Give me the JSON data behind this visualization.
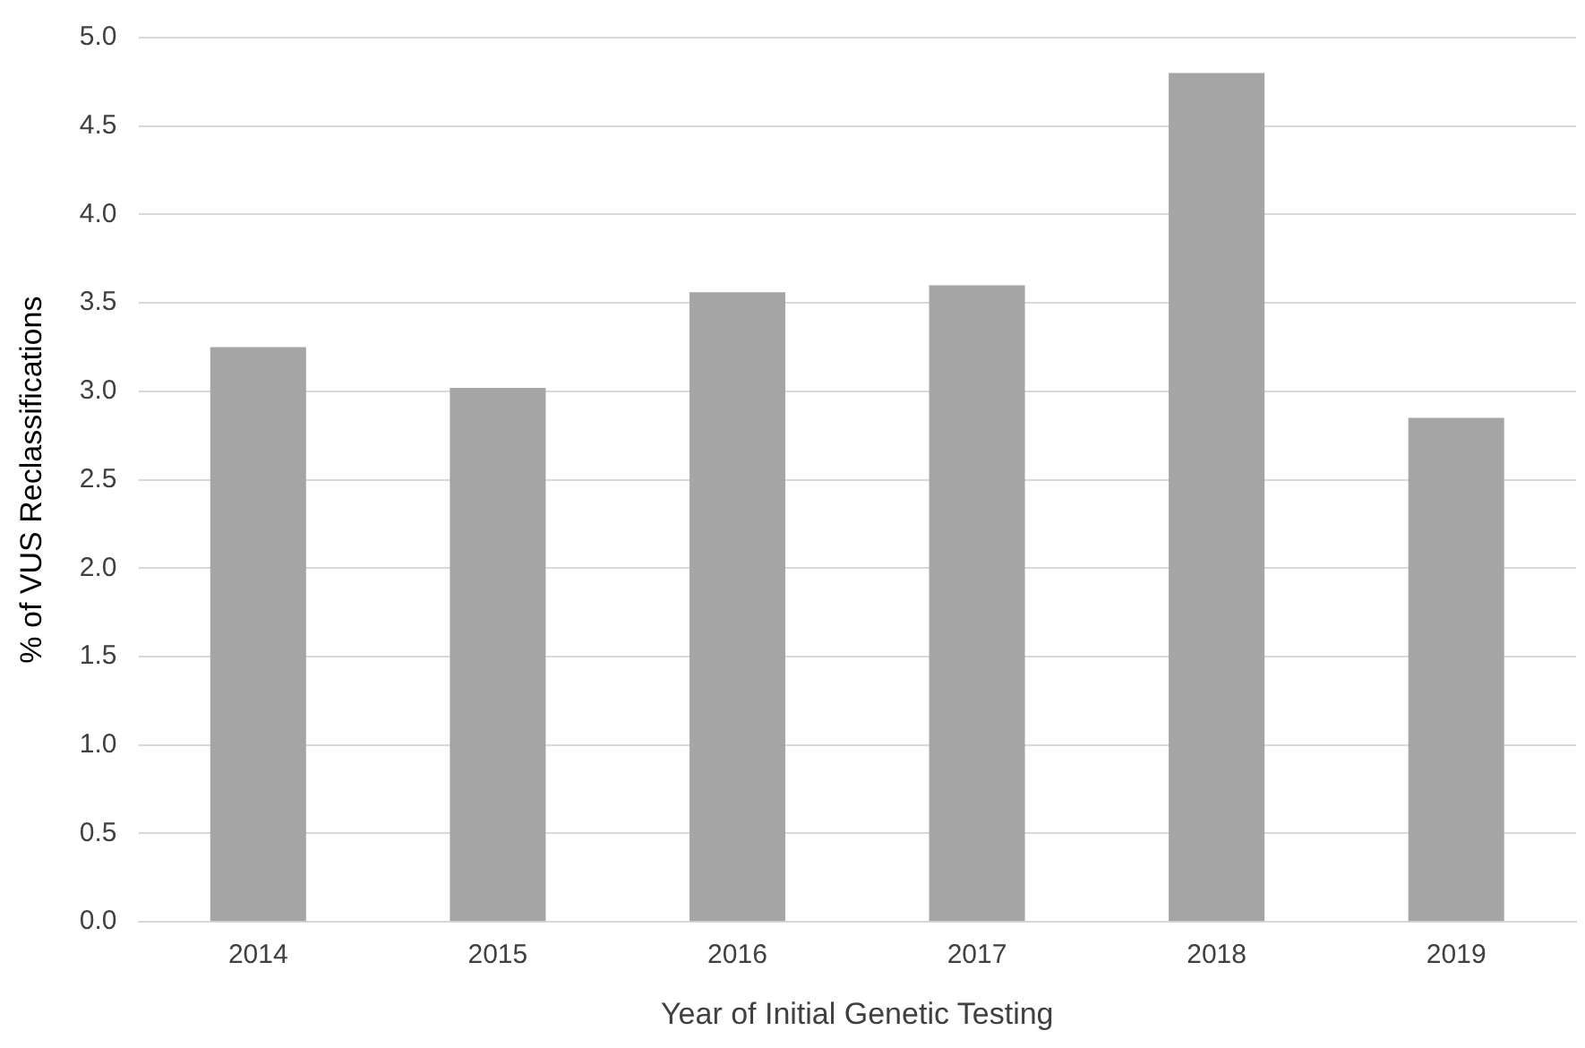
{
  "chart_data": {
    "type": "bar",
    "xlabel": "Year of Initial Genetic Testing",
    "ylabel": "% of VUS Reclassifications",
    "categories": [
      "2014",
      "2015",
      "2016",
      "2017",
      "2018",
      "2019"
    ],
    "values": [
      3.25,
      3.02,
      3.56,
      3.6,
      4.8,
      2.85
    ],
    "color": "#a5a5a5",
    "ylim": [
      0,
      5
    ],
    "yticks": [
      {
        "value": 0,
        "label": "0.0"
      },
      {
        "value": 0.5,
        "label": "0.5"
      },
      {
        "value": 1,
        "label": "1.0"
      },
      {
        "value": 1.5,
        "label": "1.5"
      },
      {
        "value": 2,
        "label": "2.0"
      },
      {
        "value": 2.5,
        "label": "2.5"
      },
      {
        "value": 3,
        "label": "3.0"
      },
      {
        "value": 3.5,
        "label": "3.5"
      },
      {
        "value": 4,
        "label": "4.0"
      },
      {
        "value": 4.5,
        "label": "4.5"
      },
      {
        "value": 5,
        "label": "5.0"
      }
    ],
    "grid": "y",
    "legend": false
  }
}
